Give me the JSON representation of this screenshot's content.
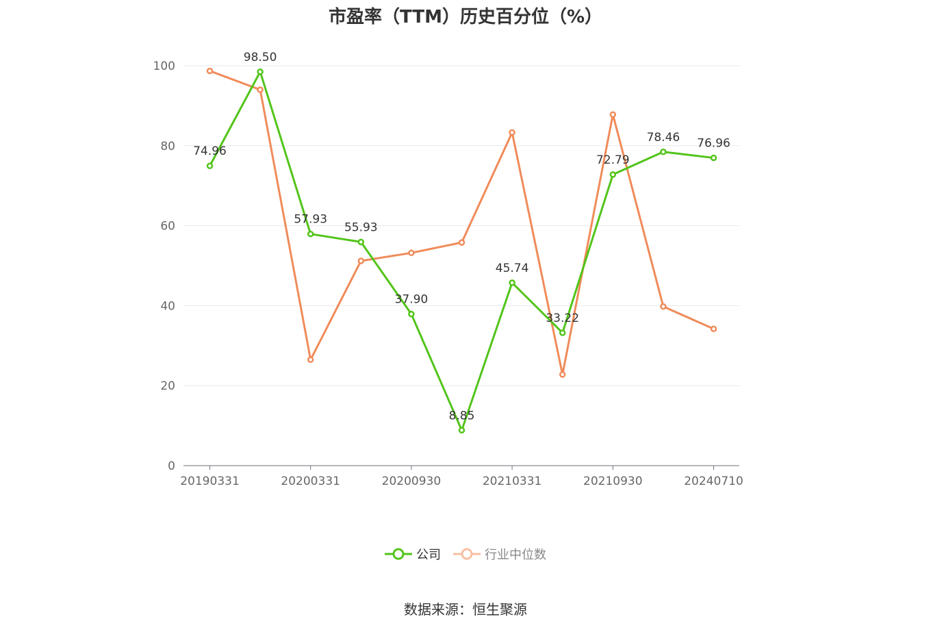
{
  "chart_data": {
    "type": "line",
    "title": "市盈率（TTM）历史百分位（%）",
    "x": [
      "20190331",
      "",
      "20200331",
      "",
      "20200930",
      "",
      "20210331",
      "",
      "20210930",
      "",
      "20240710"
    ],
    "x_tick_labels": [
      "20190331",
      "20200331",
      "20200930",
      "20210331",
      "20210930",
      "20240710"
    ],
    "ylim": [
      0,
      100
    ],
    "y_ticks": [
      "0",
      "20",
      "40",
      "60",
      "80",
      "100"
    ],
    "grid": true,
    "legend_position": "bottom",
    "series": [
      {
        "name": "公司",
        "color": "#52c41a",
        "values": [
          74.96,
          98.5,
          57.93,
          55.93,
          37.9,
          8.85,
          45.74,
          33.22,
          72.79,
          78.46,
          76.96
        ],
        "labels": [
          "74.96",
          "98.50",
          "57.93",
          "55.93",
          "37.90",
          "8.85",
          "45.74",
          "33.22",
          "72.79",
          "78.46",
          "76.96"
        ]
      },
      {
        "name": "行业中位数",
        "color": "#f08b5a",
        "values": [
          98.7,
          94.0,
          26.5,
          51.2,
          53.2,
          55.8,
          83.3,
          22.8,
          87.8,
          39.8,
          34.2
        ]
      }
    ]
  },
  "legend": {
    "company": "公司",
    "industry": "行业中位数"
  },
  "source": "数据来源：恒生聚源"
}
